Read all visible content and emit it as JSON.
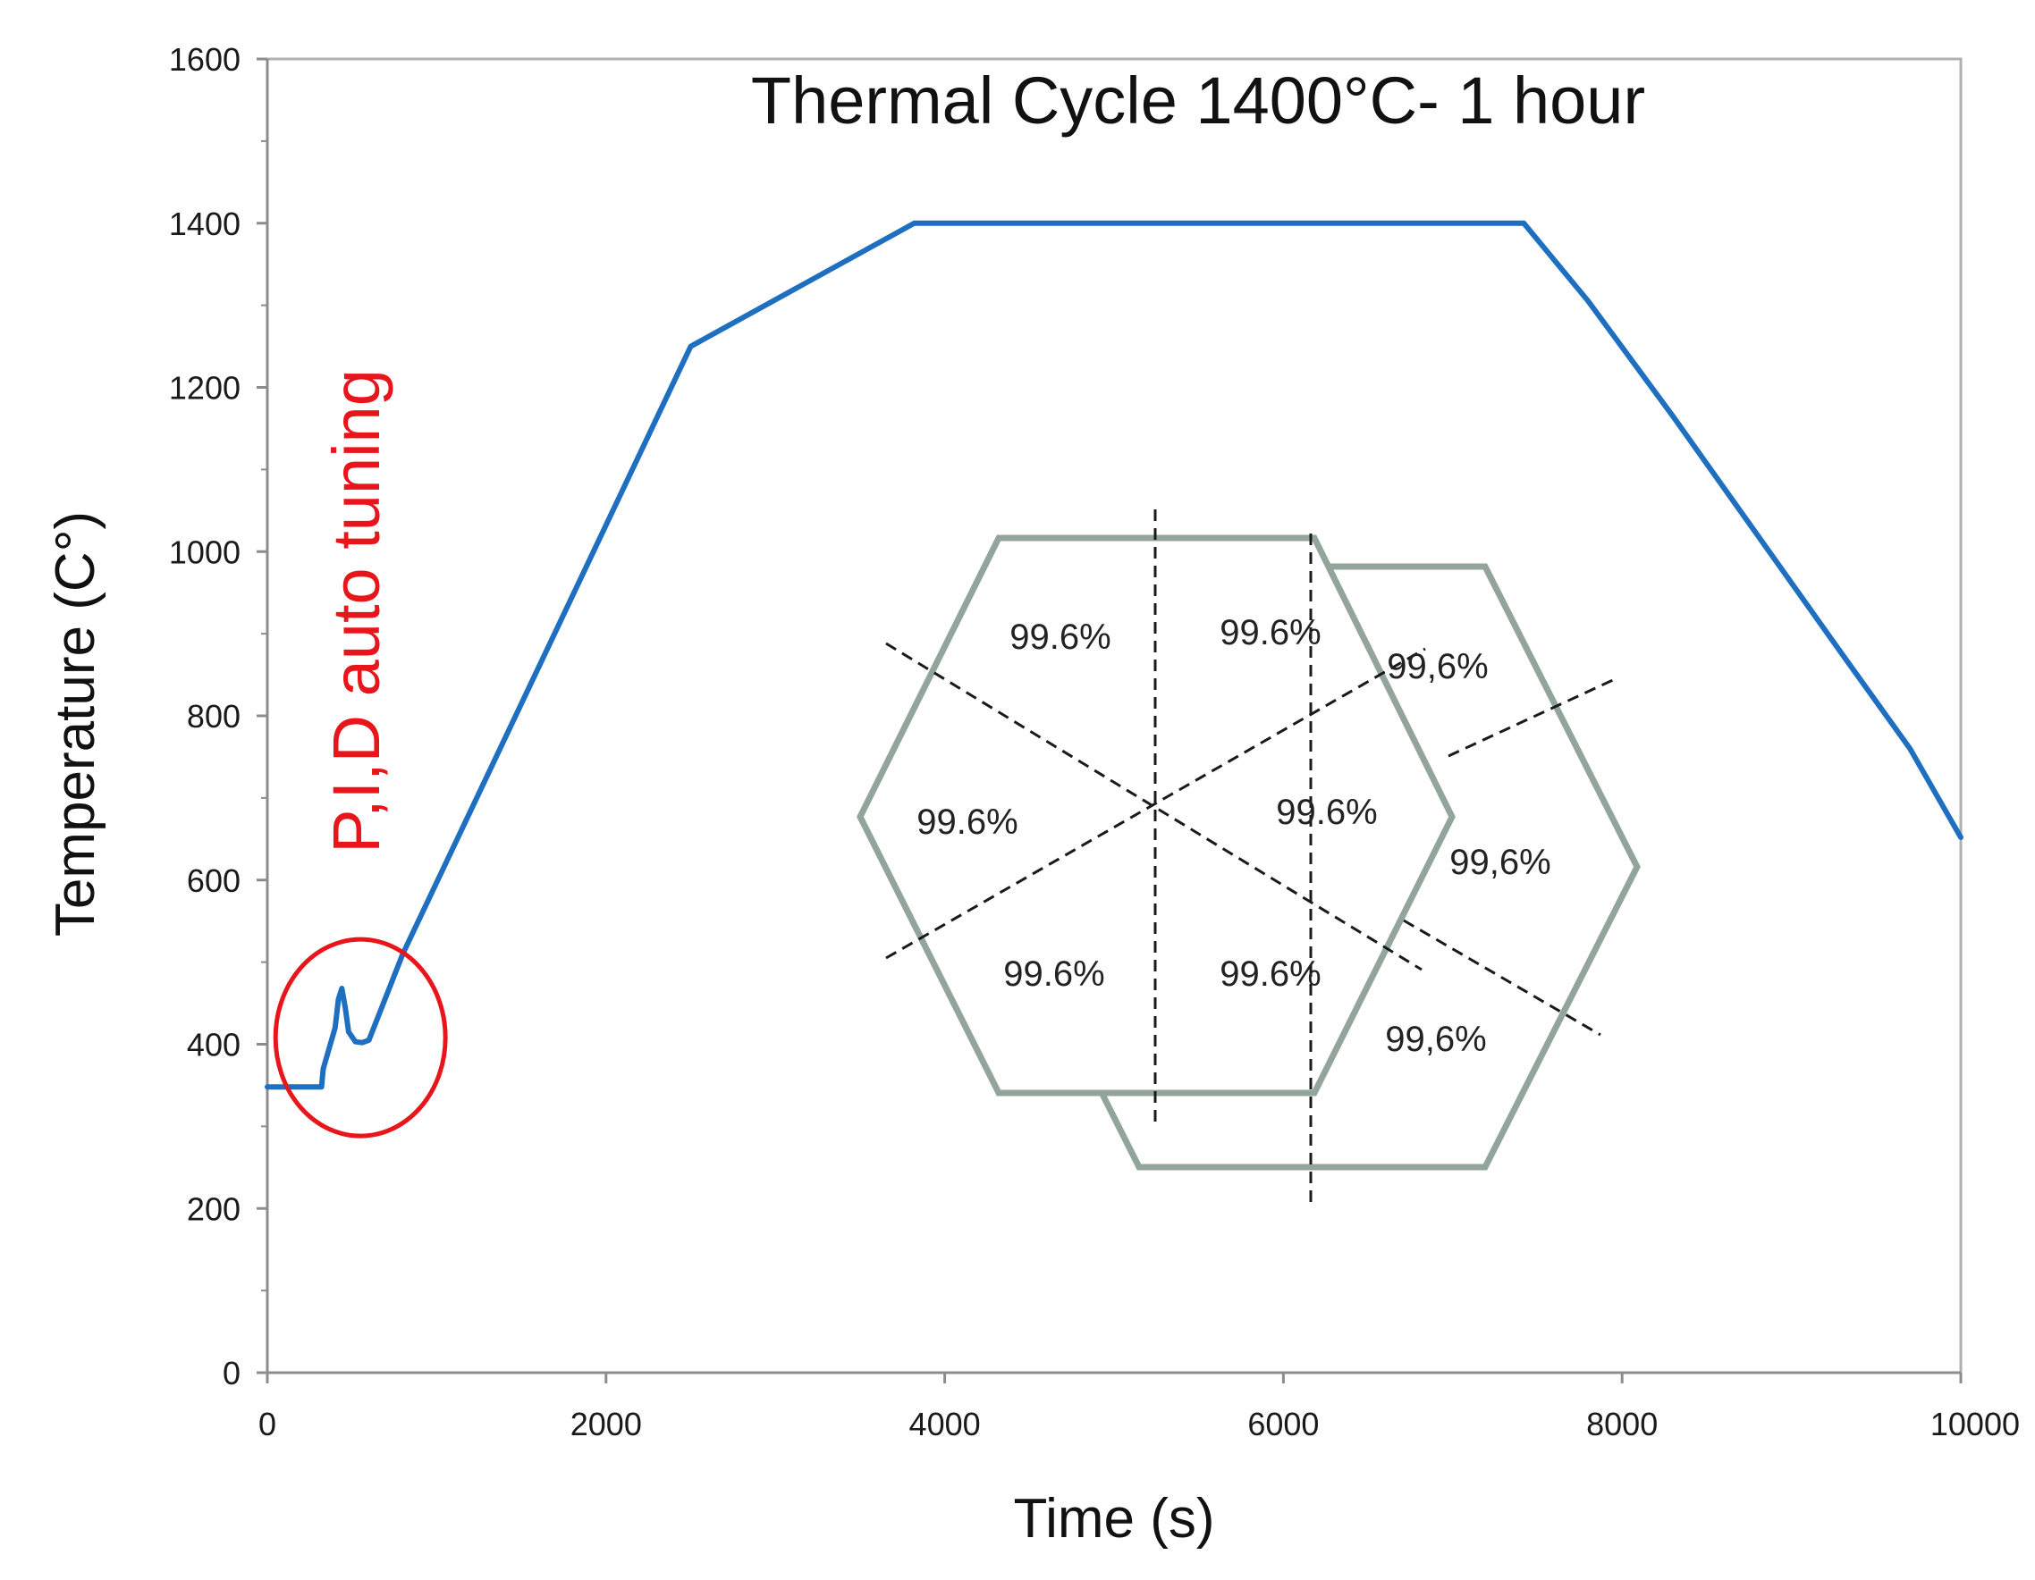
{
  "chart_data": {
    "type": "line",
    "title": "Thermal Cycle 1400°C- 1 hour",
    "xlabel": "Time (s)",
    "ylabel": "Temperature (C°)",
    "xlim": [
      0,
      10000
    ],
    "ylim": [
      0,
      1600
    ],
    "xticks": [
      "0",
      "2000",
      "4000",
      "6000",
      "8000",
      "10000"
    ],
    "yticks": [
      "0",
      "200",
      "400",
      "600",
      "800",
      "1000",
      "1200",
      "1400",
      "1600"
    ],
    "grid": false,
    "series": [
      {
        "name": "Temperature",
        "color": "#1f6fc1",
        "x": [
          0,
          320,
          330,
          400,
          420,
          440,
          460,
          480,
          520,
          560,
          600,
          800,
          2500,
          3820,
          7420,
          7800,
          8300,
          8800,
          9300,
          9700,
          10000
        ],
        "y": [
          348,
          348,
          370,
          420,
          455,
          468,
          445,
          415,
          403,
          402,
          405,
          510,
          1250,
          1400,
          1400,
          1305,
          1165,
          1020,
          875,
          760,
          652
        ]
      }
    ],
    "annotations": {
      "pid_label": "P,I,D auto tuning",
      "pid_color": "#e8161b",
      "pid_circle_center": [
        550,
        408
      ],
      "hexagon_front_labels": [
        "99.6%",
        "99.6%",
        "99.6%",
        "99.6%",
        "99.6%",
        "99.6%"
      ],
      "hexagon_back_labels": [
        "99,6%",
        "99,6%",
        "99,6%"
      ],
      "hexagon_color": "#93a59a"
    }
  }
}
